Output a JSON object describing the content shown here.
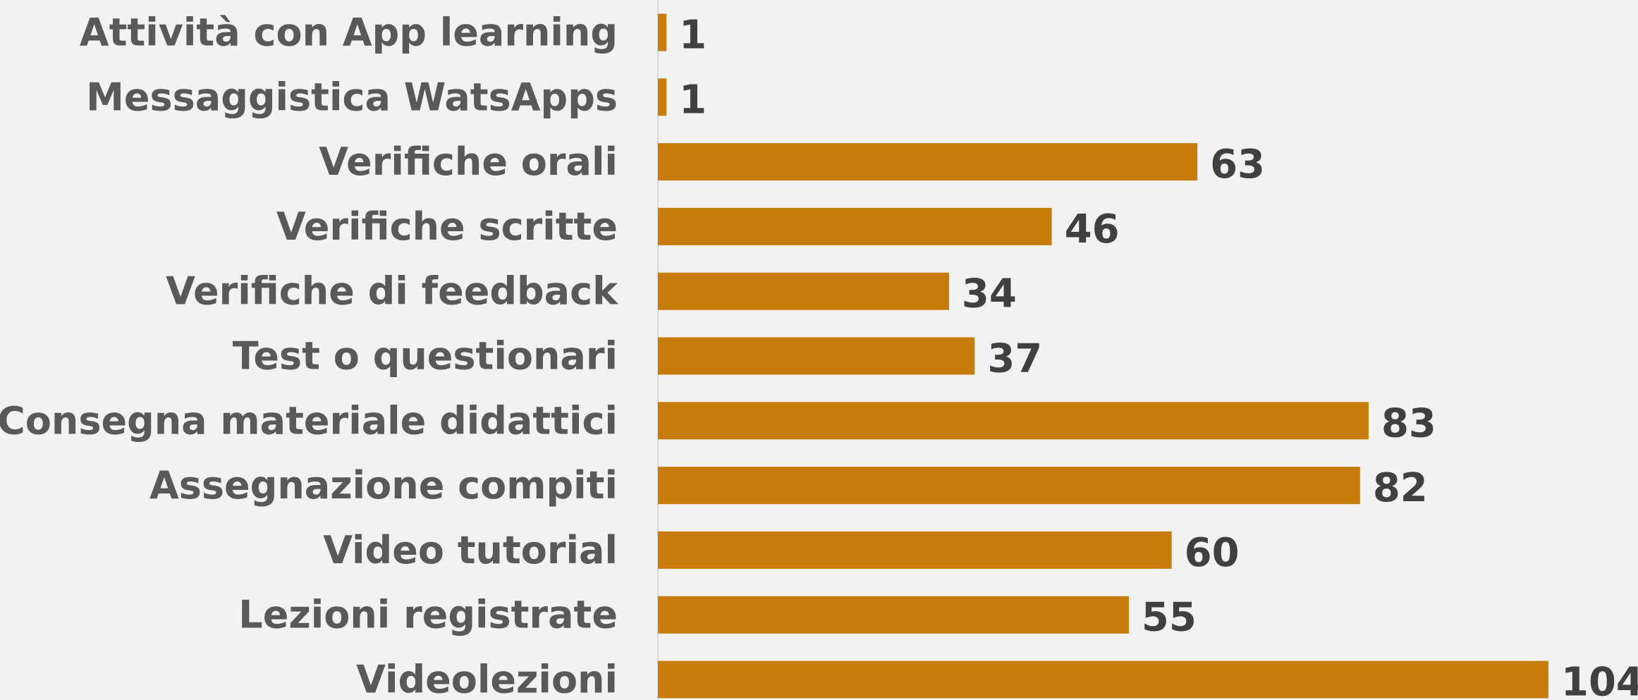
{
  "chart_data": {
    "type": "hbar",
    "categories": [
      "Attività con App learning",
      "Messaggistica WatsApps",
      "Verifiche orali",
      "Verifiche scritte",
      "Verifiche di feedback",
      "Test o questionari",
      "Consegna materiale didattici",
      "Assegnazione compiti",
      "Video tutorial",
      "Lezioni registrate",
      "Videolezioni"
    ],
    "values": [
      1,
      1,
      63,
      46,
      34,
      37,
      83,
      82,
      60,
      55,
      104
    ],
    "color": "#c77c0a"
  }
}
